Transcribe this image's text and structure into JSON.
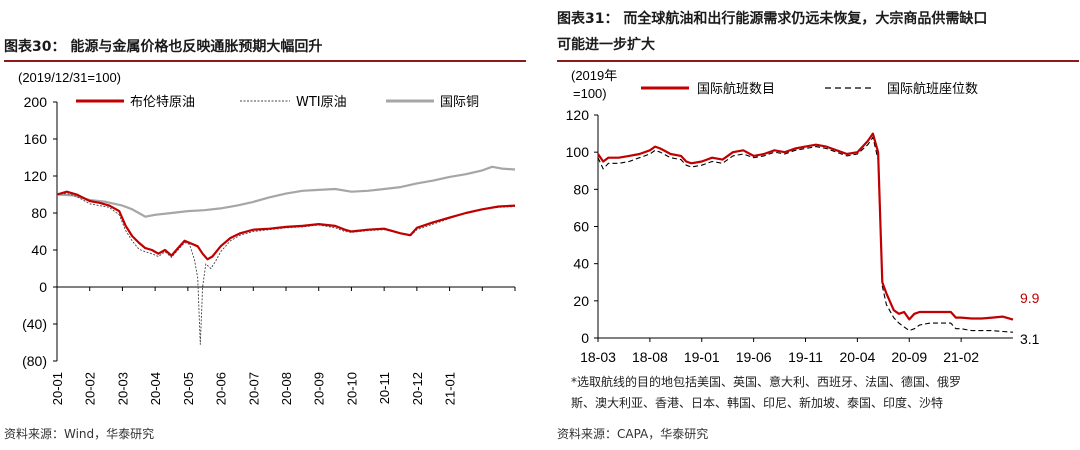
{
  "left": {
    "title": "图表30：  能源与金属价格也反映通胀预期大幅回升",
    "unit_note": "(2019/12/31=100)",
    "source": "资料来源：Wind，华泰研究",
    "colors": {
      "brent": "#c00000",
      "wti": "#444444",
      "copper": "#a6a6a6",
      "rule": "#8b1a1a"
    }
  },
  "right": {
    "title_line1": "图表31：  而全球航油和出行能源需求仍远未恢复，大宗商品供需缺口",
    "title_line2": "可能进一步扩大",
    "unit_note_line1": "(2019年",
    "unit_note_line2": "=100)",
    "note_line1": "*选取航线的目的地包括美国、英国、意大利、西班牙、法国、德国、俄罗",
    "note_line2": "斯、澳大利亚、香港、日本、韩国、印尼、新加坡、泰国、印度、沙特",
    "source": "资料来源：CAPA，华泰研究",
    "end_label_flights": "9.9",
    "end_label_seats": "3.1"
  },
  "chart_data": [
    {
      "type": "line",
      "title": "能源与金属价格也反映通胀预期大幅回升",
      "ylabel": "(2019/12/31=100)",
      "ylim": [
        -80,
        200
      ],
      "yticks": [
        -80,
        -40,
        0,
        40,
        80,
        120,
        160,
        200
      ],
      "ytick_labels": [
        "(80)",
        "(40)",
        "0",
        "40",
        "80",
        "120",
        "160",
        "200"
      ],
      "xticks": [
        "20-01",
        "20-02",
        "20-03",
        "20-04",
        "20-05",
        "20-06",
        "20-07",
        "20-08",
        "20-09",
        "20-10",
        "20-11",
        "20-12",
        "21-01"
      ],
      "x_range_months": [
        0,
        14
      ],
      "legend_position": "top",
      "series": [
        {
          "name": "布伦特原油",
          "points": [
            [
              0,
              100
            ],
            [
              0.3,
              103
            ],
            [
              0.6,
              100
            ],
            [
              1,
              93
            ],
            [
              1.3,
              91
            ],
            [
              1.6,
              88
            ],
            [
              1.9,
              82
            ],
            [
              2.1,
              66
            ],
            [
              2.3,
              55
            ],
            [
              2.5,
              48
            ],
            [
              2.7,
              42
            ],
            [
              2.9,
              40
            ],
            [
              3.1,
              36
            ],
            [
              3.3,
              40
            ],
            [
              3.5,
              34
            ],
            [
              3.7,
              42
            ],
            [
              3.9,
              50
            ],
            [
              4.1,
              47
            ],
            [
              4.3,
              44
            ],
            [
              4.45,
              36
            ],
            [
              4.6,
              30
            ],
            [
              4.75,
              33
            ],
            [
              5,
              44
            ],
            [
              5.3,
              53
            ],
            [
              5.6,
              58
            ],
            [
              6,
              62
            ],
            [
              6.5,
              63
            ],
            [
              7,
              65
            ],
            [
              7.5,
              66
            ],
            [
              8,
              68
            ],
            [
              8.5,
              66
            ],
            [
              8.8,
              62
            ],
            [
              9,
              60
            ],
            [
              9.5,
              62
            ],
            [
              10,
              63
            ],
            [
              10.5,
              58
            ],
            [
              10.8,
              56
            ],
            [
              11,
              64
            ],
            [
              11.5,
              70
            ],
            [
              12,
              75
            ],
            [
              12.5,
              80
            ],
            [
              13,
              84
            ],
            [
              13.5,
              87
            ],
            [
              14,
              88
            ]
          ]
        },
        {
          "name": "WTI原油",
          "points": [
            [
              0,
              100
            ],
            [
              0.3,
              101
            ],
            [
              0.6,
              98
            ],
            [
              1,
              90
            ],
            [
              1.3,
              88
            ],
            [
              1.6,
              86
            ],
            [
              1.9,
              78
            ],
            [
              2.1,
              61
            ],
            [
              2.3,
              50
            ],
            [
              2.5,
              41
            ],
            [
              2.7,
              38
            ],
            [
              2.9,
              36
            ],
            [
              3.1,
              33
            ],
            [
              3.3,
              38
            ],
            [
              3.5,
              32
            ],
            [
              3.7,
              40
            ],
            [
              3.9,
              48
            ],
            [
              4.05,
              46
            ],
            [
              4.2,
              30
            ],
            [
              4.3,
              10
            ],
            [
              4.38,
              -62
            ],
            [
              4.45,
              0
            ],
            [
              4.55,
              25
            ],
            [
              4.7,
              20
            ],
            [
              4.85,
              28
            ],
            [
              5,
              38
            ],
            [
              5.3,
              50
            ],
            [
              5.6,
              56
            ],
            [
              6,
              60
            ],
            [
              6.5,
              62
            ],
            [
              7,
              64
            ],
            [
              7.5,
              65
            ],
            [
              8,
              67
            ],
            [
              8.5,
              64
            ],
            [
              8.8,
              60
            ],
            [
              9,
              59
            ],
            [
              9.5,
              61
            ],
            [
              10,
              62
            ],
            [
              10.5,
              58
            ],
            [
              10.8,
              55
            ],
            [
              11,
              62
            ],
            [
              11.5,
              68
            ],
            [
              12,
              74
            ],
            [
              12.5,
              80
            ],
            [
              13,
              84
            ],
            [
              13.5,
              86
            ],
            [
              14,
              87
            ]
          ]
        },
        {
          "name": "国际铜",
          "points": [
            [
              0,
              100
            ],
            [
              0.5,
              99
            ],
            [
              1,
              94
            ],
            [
              1.5,
              92
            ],
            [
              2,
              88
            ],
            [
              2.3,
              84
            ],
            [
              2.5,
              80
            ],
            [
              2.7,
              76
            ],
            [
              3,
              78
            ],
            [
              3.5,
              80
            ],
            [
              4,
              82
            ],
            [
              4.5,
              83
            ],
            [
              5,
              85
            ],
            [
              5.5,
              88
            ],
            [
              6,
              92
            ],
            [
              6.5,
              97
            ],
            [
              7,
              101
            ],
            [
              7.5,
              104
            ],
            [
              8,
              105
            ],
            [
              8.5,
              106
            ],
            [
              9,
              103
            ],
            [
              9.5,
              104
            ],
            [
              10,
              106
            ],
            [
              10.5,
              108
            ],
            [
              11,
              112
            ],
            [
              11.5,
              115
            ],
            [
              12,
              119
            ],
            [
              12.5,
              122
            ],
            [
              13,
              126
            ],
            [
              13.3,
              130
            ],
            [
              13.6,
              128
            ],
            [
              14,
              127
            ]
          ]
        }
      ]
    },
    {
      "type": "line",
      "title": "而全球航油和出行能源需求仍远未恢复，大宗商品供需缺口可能进一步扩大",
      "ylabel": "(2019年=100)",
      "ylim": [
        0,
        120
      ],
      "yticks": [
        0,
        20,
        40,
        60,
        80,
        100,
        120
      ],
      "xticks": [
        "18-03",
        "18-08",
        "19-01",
        "19-06",
        "19-11",
        "20-04",
        "20-09",
        "21-02"
      ],
      "x_range_months": [
        0,
        36
      ],
      "legend_position": "top",
      "annotations": [
        "9.9",
        "3.1"
      ],
      "series": [
        {
          "name": "国际航班数目",
          "points": [
            [
              0,
              99
            ],
            [
              0.5,
              95
            ],
            [
              1,
              97
            ],
            [
              2,
              97
            ],
            [
              3,
              98
            ],
            [
              4,
              99
            ],
            [
              5,
              101
            ],
            [
              5.5,
              103
            ],
            [
              6,
              102
            ],
            [
              7,
              99
            ],
            [
              8,
              98
            ],
            [
              8.5,
              95
            ],
            [
              9,
              94
            ],
            [
              10,
              95
            ],
            [
              11,
              97
            ],
            [
              12,
              96
            ],
            [
              13,
              100
            ],
            [
              14,
              101
            ],
            [
              15,
              98
            ],
            [
              16,
              99
            ],
            [
              17,
              101
            ],
            [
              18,
              100
            ],
            [
              19,
              102
            ],
            [
              20,
              103
            ],
            [
              21,
              104
            ],
            [
              22,
              103
            ],
            [
              23,
              101
            ],
            [
              24,
              99
            ],
            [
              25,
              100
            ],
            [
              26,
              106
            ],
            [
              26.5,
              110
            ],
            [
              27,
              100
            ],
            [
              27.4,
              30
            ],
            [
              27.8,
              24
            ],
            [
              28.5,
              15
            ],
            [
              29,
              13
            ],
            [
              29.5,
              14
            ],
            [
              30,
              10
            ],
            [
              30.5,
              13
            ],
            [
              31,
              14
            ],
            [
              32,
              14
            ],
            [
              33,
              14
            ],
            [
              34,
              14
            ],
            [
              34.5,
              11
            ],
            [
              35,
              11
            ],
            [
              36,
              10.5
            ],
            [
              37,
              10.5
            ],
            [
              38,
              11
            ],
            [
              39,
              11.5
            ],
            [
              40,
              9.9
            ]
          ]
        },
        {
          "name": "国际航班座位数",
          "points": [
            [
              0,
              97
            ],
            [
              0.5,
              91
            ],
            [
              1,
              94
            ],
            [
              2,
              94
            ],
            [
              3,
              95
            ],
            [
              4,
              97
            ],
            [
              5,
              99
            ],
            [
              5.5,
              101
            ],
            [
              6,
              100
            ],
            [
              7,
              97
            ],
            [
              8,
              96
            ],
            [
              8.5,
              93
            ],
            [
              9,
              92
            ],
            [
              10,
              93
            ],
            [
              11,
              95
            ],
            [
              12,
              94
            ],
            [
              13,
              98
            ],
            [
              14,
              99
            ],
            [
              15,
              97
            ],
            [
              16,
              98
            ],
            [
              17,
              100
            ],
            [
              18,
              99
            ],
            [
              19,
              101
            ],
            [
              20,
              102
            ],
            [
              21,
              103
            ],
            [
              22,
              102
            ],
            [
              23,
              100
            ],
            [
              24,
              98
            ],
            [
              25,
              99
            ],
            [
              26,
              104
            ],
            [
              26.5,
              108
            ],
            [
              27,
              96
            ],
            [
              27.4,
              28
            ],
            [
              27.8,
              18
            ],
            [
              28.5,
              11
            ],
            [
              29,
              8
            ],
            [
              29.5,
              6
            ],
            [
              30,
              4
            ],
            [
              30.5,
              5
            ],
            [
              31,
              7
            ],
            [
              32,
              8
            ],
            [
              33,
              8
            ],
            [
              34,
              8
            ],
            [
              34.5,
              5
            ],
            [
              35,
              5
            ],
            [
              36,
              4
            ],
            [
              37,
              4
            ],
            [
              38,
              4
            ],
            [
              39,
              3.5
            ],
            [
              40,
              3.1
            ]
          ]
        }
      ]
    }
  ]
}
